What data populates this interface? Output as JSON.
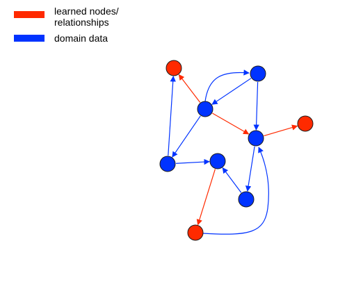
{
  "legend": {
    "items": [
      {
        "line1": "learned nodes/",
        "line2": "relationships",
        "color": "#ff2a00"
      },
      {
        "line1": "domain data",
        "line2": "",
        "color": "#0033ff"
      }
    ]
  },
  "graph": {
    "colors": {
      "learned": "#ff2a00",
      "domain": "#0033ff"
    },
    "nodes": [
      {
        "id": "n1",
        "kind": "learned"
      },
      {
        "id": "n2",
        "kind": "domain"
      },
      {
        "id": "n3",
        "kind": "domain"
      },
      {
        "id": "n4",
        "kind": "domain"
      },
      {
        "id": "n5",
        "kind": "learned"
      },
      {
        "id": "n6",
        "kind": "domain"
      },
      {
        "id": "n7",
        "kind": "domain"
      },
      {
        "id": "n8",
        "kind": "domain"
      },
      {
        "id": "n9",
        "kind": "learned"
      }
    ],
    "edges": [
      {
        "from": "n3",
        "to": "n1",
        "kind": "learned"
      },
      {
        "from": "n3",
        "to": "n2",
        "kind": "domain"
      },
      {
        "from": "n2",
        "to": "n3",
        "kind": "domain"
      },
      {
        "from": "n2",
        "to": "n4",
        "kind": "domain"
      },
      {
        "from": "n3",
        "to": "n4",
        "kind": "learned"
      },
      {
        "from": "n4",
        "to": "n5",
        "kind": "learned"
      },
      {
        "from": "n3",
        "to": "n6",
        "kind": "domain"
      },
      {
        "from": "n6",
        "to": "n1",
        "kind": "domain"
      },
      {
        "from": "n6",
        "to": "n7",
        "kind": "domain"
      },
      {
        "from": "n4",
        "to": "n8",
        "kind": "domain"
      },
      {
        "from": "n8",
        "to": "n7",
        "kind": "domain"
      },
      {
        "from": "n7",
        "to": "n9",
        "kind": "learned"
      },
      {
        "from": "n9",
        "to": "n4",
        "kind": "domain"
      }
    ]
  }
}
